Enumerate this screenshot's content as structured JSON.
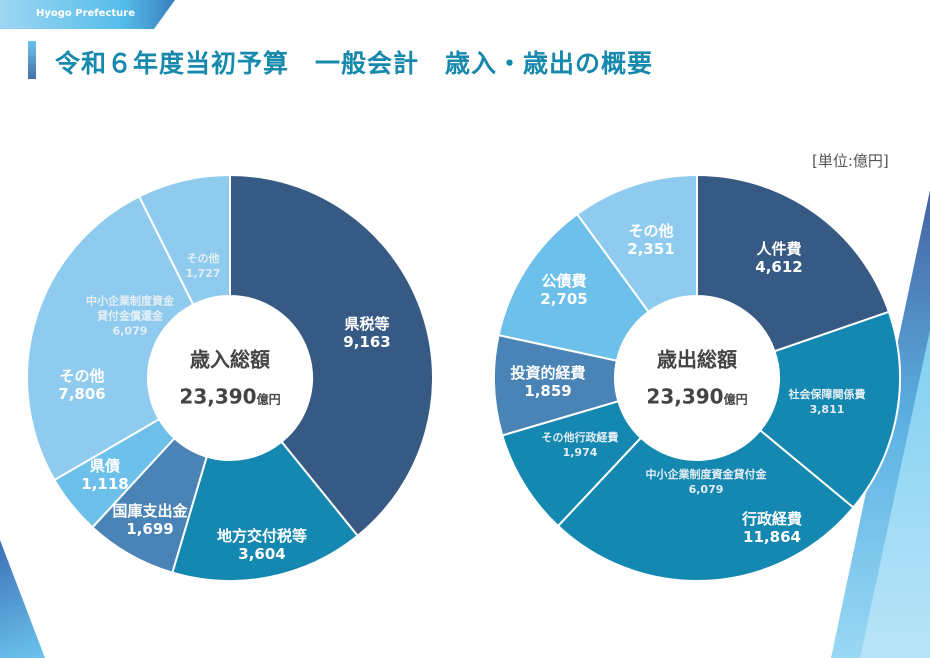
{
  "header": {
    "org": "Hyogo Prefecture",
    "title": "令和６年度当初予算　一般会計　歳入・歳出の概要",
    "unit": "[単位:億円]"
  },
  "colors": {
    "dark": "#375a84",
    "teal": "#1488b0",
    "mid": "#4a84b6",
    "light": "#6cc0ea",
    "lighter": "#8ecbee",
    "title": "#1689ac"
  },
  "chart_data": [
    {
      "type": "pie",
      "donut": true,
      "center_title": "歳入総額",
      "center_value": "23,390",
      "center_unit": "億円",
      "slices": [
        {
          "label": "県税等",
          "value": 9163,
          "value_text": "9,163",
          "color": "#375a84"
        },
        {
          "label": "地方交付税等",
          "value": 3604,
          "value_text": "3,604",
          "color": "#1488b0"
        },
        {
          "label": "国庫支出金",
          "value": 1699,
          "value_text": "1,699",
          "color": "#4a84b6"
        },
        {
          "label": "県債",
          "value": 1118,
          "value_text": "1,118",
          "color": "#6cc0ea"
        },
        {
          "label": "中小企業制度資金貸付金償還金",
          "label_lines": [
            "中小企業制度資金",
            "貸付金償還金"
          ],
          "value": 6079,
          "value_text": "6,079",
          "color": "#8ecbee",
          "group": "その他"
        },
        {
          "label": "その他",
          "value": 1727,
          "value_text": "1,727",
          "color": "#8ecbee",
          "group": "その他"
        }
      ],
      "groups": [
        {
          "label": "その他",
          "value": 7806,
          "value_text": "7,806"
        }
      ]
    },
    {
      "type": "pie",
      "donut": true,
      "center_title": "歳出総額",
      "center_value": "23,390",
      "center_unit": "億円",
      "slices": [
        {
          "label": "人件費",
          "value": 4612,
          "value_text": "4,612",
          "color": "#375a84"
        },
        {
          "label": "社会保障関係費",
          "value": 3811,
          "value_text": "3,811",
          "color": "#1488b0",
          "group": "行政経費"
        },
        {
          "label": "中小企業制度資金貸付金",
          "value": 6079,
          "value_text": "6,079",
          "color": "#1488b0",
          "group": "行政経費"
        },
        {
          "label": "その他行政経費",
          "value": 1974,
          "value_text": "1,974",
          "color": "#1488b0",
          "group": "行政経費"
        },
        {
          "label": "投資的経費",
          "value": 1859,
          "value_text": "1,859",
          "color": "#4a84b6"
        },
        {
          "label": "公債費",
          "value": 2705,
          "value_text": "2,705",
          "color": "#6cc0ea"
        },
        {
          "label": "その他",
          "value": 2351,
          "value_text": "2,351",
          "color": "#8ecbee"
        }
      ],
      "groups": [
        {
          "label": "行政経費",
          "value": 11864,
          "value_text": "11,864"
        }
      ]
    }
  ]
}
